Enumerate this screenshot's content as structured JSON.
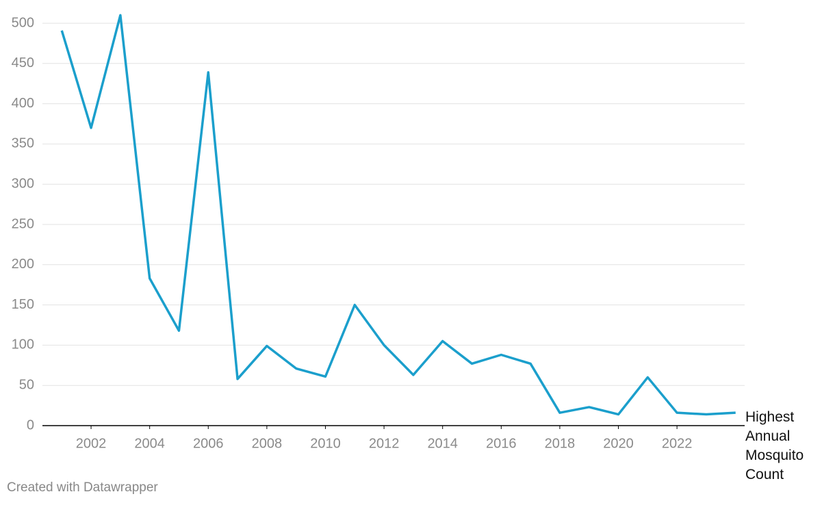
{
  "chart_data": {
    "type": "line",
    "x": [
      2001,
      2002,
      2003,
      2004,
      2005,
      2006,
      2007,
      2008,
      2009,
      2010,
      2011,
      2012,
      2013,
      2014,
      2015,
      2016,
      2017,
      2018,
      2019,
      2020,
      2021,
      2022,
      2023,
      2024
    ],
    "series": [
      {
        "name": "Highest Annual Mosquito Count",
        "color": "#1b9fcc",
        "values": [
          491,
          370,
          510,
          183,
          118,
          439,
          58,
          99,
          71,
          61,
          150,
          100,
          63,
          105,
          77,
          88,
          77,
          16,
          23,
          14,
          60,
          16,
          14,
          16
        ]
      }
    ],
    "xlim": [
      2000.34,
      2024.31
    ],
    "xticks": [
      2002,
      2004,
      2006,
      2008,
      2010,
      2012,
      2014,
      2016,
      2018,
      2020,
      2022
    ],
    "ylim": [
      0,
      500
    ],
    "yticks": [
      0,
      50,
      100,
      150,
      200,
      250,
      300,
      350,
      400,
      450,
      500
    ],
    "grid": true,
    "credit": "Created with Datawrapper"
  }
}
